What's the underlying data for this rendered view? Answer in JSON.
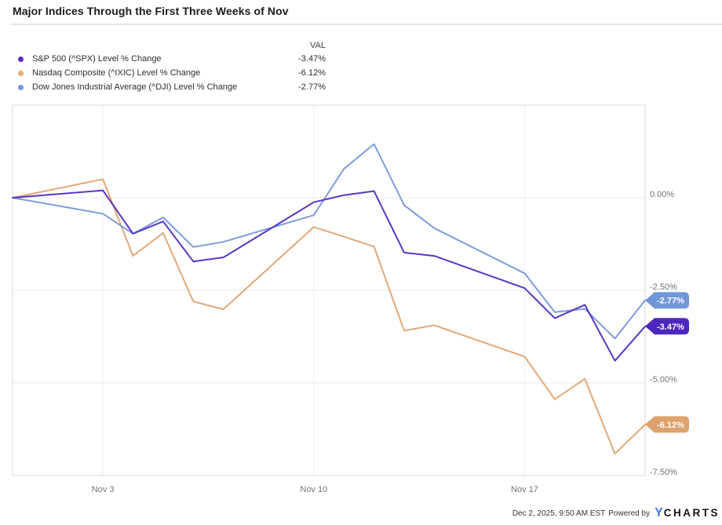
{
  "title": "Major Indices Through the First Three Weeks of Nov",
  "legend": {
    "val_header": "VAL",
    "items": [
      {
        "label": "S&P 500 (^SPX) Level % Change",
        "value": "-3.47%",
        "color": "#5d2fc2"
      },
      {
        "label": "Nasdaq Composite (^IXIC) Level % Change",
        "value": "-6.12%",
        "color": "#e8ab72"
      },
      {
        "label": "Dow Jones Industrial Average (^DJI) Level % Change",
        "value": "-2.77%",
        "color": "#7294dc"
      }
    ]
  },
  "footer": {
    "timestamp": "Dec 2, 2025, 9:50 AM EST",
    "powered_by": "Powered by",
    "logo_y": "Y",
    "logo_charts": "CHARTS"
  },
  "chart_data": {
    "type": "line",
    "title": "Major Indices Through the First Three Weeks of Nov",
    "x_dates": [
      "Oct 31",
      "Nov 3",
      "Nov 4",
      "Nov 5",
      "Nov 6",
      "Nov 7",
      "Nov 10",
      "Nov 11",
      "Nov 12",
      "Nov 13",
      "Nov 14",
      "Nov 17",
      "Nov 18",
      "Nov 19",
      "Nov 20",
      "Nov 21"
    ],
    "x_day_offsets": [
      0,
      3,
      4,
      5,
      6,
      7,
      10,
      11,
      12,
      13,
      14,
      17,
      18,
      19,
      20,
      21
    ],
    "x_max_day": 21,
    "series": [
      {
        "name": "Nasdaq Composite (^IXIC) Level % Change",
        "color": "#e3a878",
        "tag_color": "#dda26e",
        "end_label": "-6.12%",
        "values": [
          0.0,
          0.5,
          -1.57,
          -0.95,
          -2.8,
          -3.01,
          -0.79,
          -1.05,
          -1.32,
          -3.59,
          -3.44,
          -4.29,
          -5.44,
          -4.89,
          -6.91,
          -6.12
        ]
      },
      {
        "name": "Dow Jones Industrial Average (^DJI) Level % Change",
        "color": "#7d9ddb",
        "tag_color": "#7297d8",
        "end_label": "-2.77%",
        "values": [
          0.0,
          -0.43,
          -0.97,
          -0.53,
          -1.33,
          -1.19,
          -0.47,
          0.78,
          1.45,
          -0.2,
          -0.82,
          -2.04,
          -3.09,
          -3.0,
          -3.8,
          -2.77
        ]
      },
      {
        "name": "S&P 500 (^SPX) Level % Change",
        "color": "#5936c6",
        "tag_color": "#4d27bd",
        "end_label": "-3.47%",
        "values": [
          0.0,
          0.2,
          -0.97,
          -0.64,
          -1.72,
          -1.61,
          -0.12,
          0.07,
          0.18,
          -1.48,
          -1.57,
          -2.44,
          -3.25,
          -2.89,
          -4.4,
          -3.47
        ]
      }
    ],
    "x_ticks": [
      {
        "label": "Nov 3",
        "day": 3
      },
      {
        "label": "Nov 10",
        "day": 10
      },
      {
        "label": "Nov 17",
        "day": 17
      }
    ],
    "y_ticks": [
      {
        "label": "0.00%",
        "value": 0.0
      },
      {
        "label": "-2.50%",
        "value": -2.5
      },
      {
        "label": "-5.00%",
        "value": -5.0
      },
      {
        "label": "-7.50%",
        "value": -7.5
      }
    ],
    "ylim": [
      -7.5,
      2.5
    ],
    "grid": true,
    "legend_position": "top-left",
    "y_axis_side": "right"
  }
}
